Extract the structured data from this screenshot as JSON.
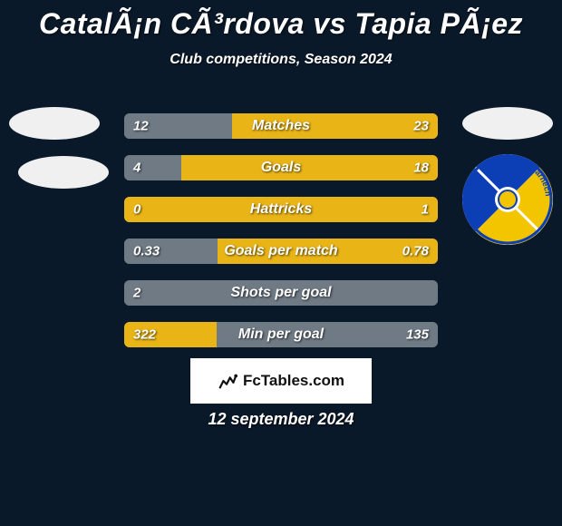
{
  "background_color": "#0a1929",
  "title": "CatalÃ¡n CÃ³rdova vs Tapia PÃ¡ez",
  "subtitle": "Club competitions, Season 2024",
  "left_bar_color": "#6f7a85",
  "right_bar_color": "#e9b416",
  "border_color": "#8a8f93",
  "text_color": "#ffffff",
  "rows": [
    {
      "label": "Matches",
      "left": "12",
      "right": "23",
      "left_pct": 34.3,
      "right_pct": 65.7
    },
    {
      "label": "Goals",
      "left": "4",
      "right": "18",
      "left_pct": 18.2,
      "right_pct": 81.8
    },
    {
      "label": "Hattricks",
      "left": "0",
      "right": "1",
      "left_pct": 0,
      "right_pct": 100
    },
    {
      "label": "Goals per match",
      "left": "0.33",
      "right": "0.78",
      "left_pct": 29.7,
      "right_pct": 70.3
    },
    {
      "label": "Shots per goal",
      "left": "2",
      "right": "",
      "left_pct": 100,
      "right_pct": 0
    },
    {
      "label": "Min per goal",
      "left": "322",
      "right": "135",
      "left_pct": 29.5,
      "right_pct": 70.5,
      "swap": true
    }
  ],
  "footer_brand": "FcTables.com",
  "date": "12 september 2024",
  "club_badge": {
    "bg": "#ffffff",
    "blue": "#0c3fb5",
    "yellow": "#f3c400",
    "text": "A.C. Barnech"
  }
}
